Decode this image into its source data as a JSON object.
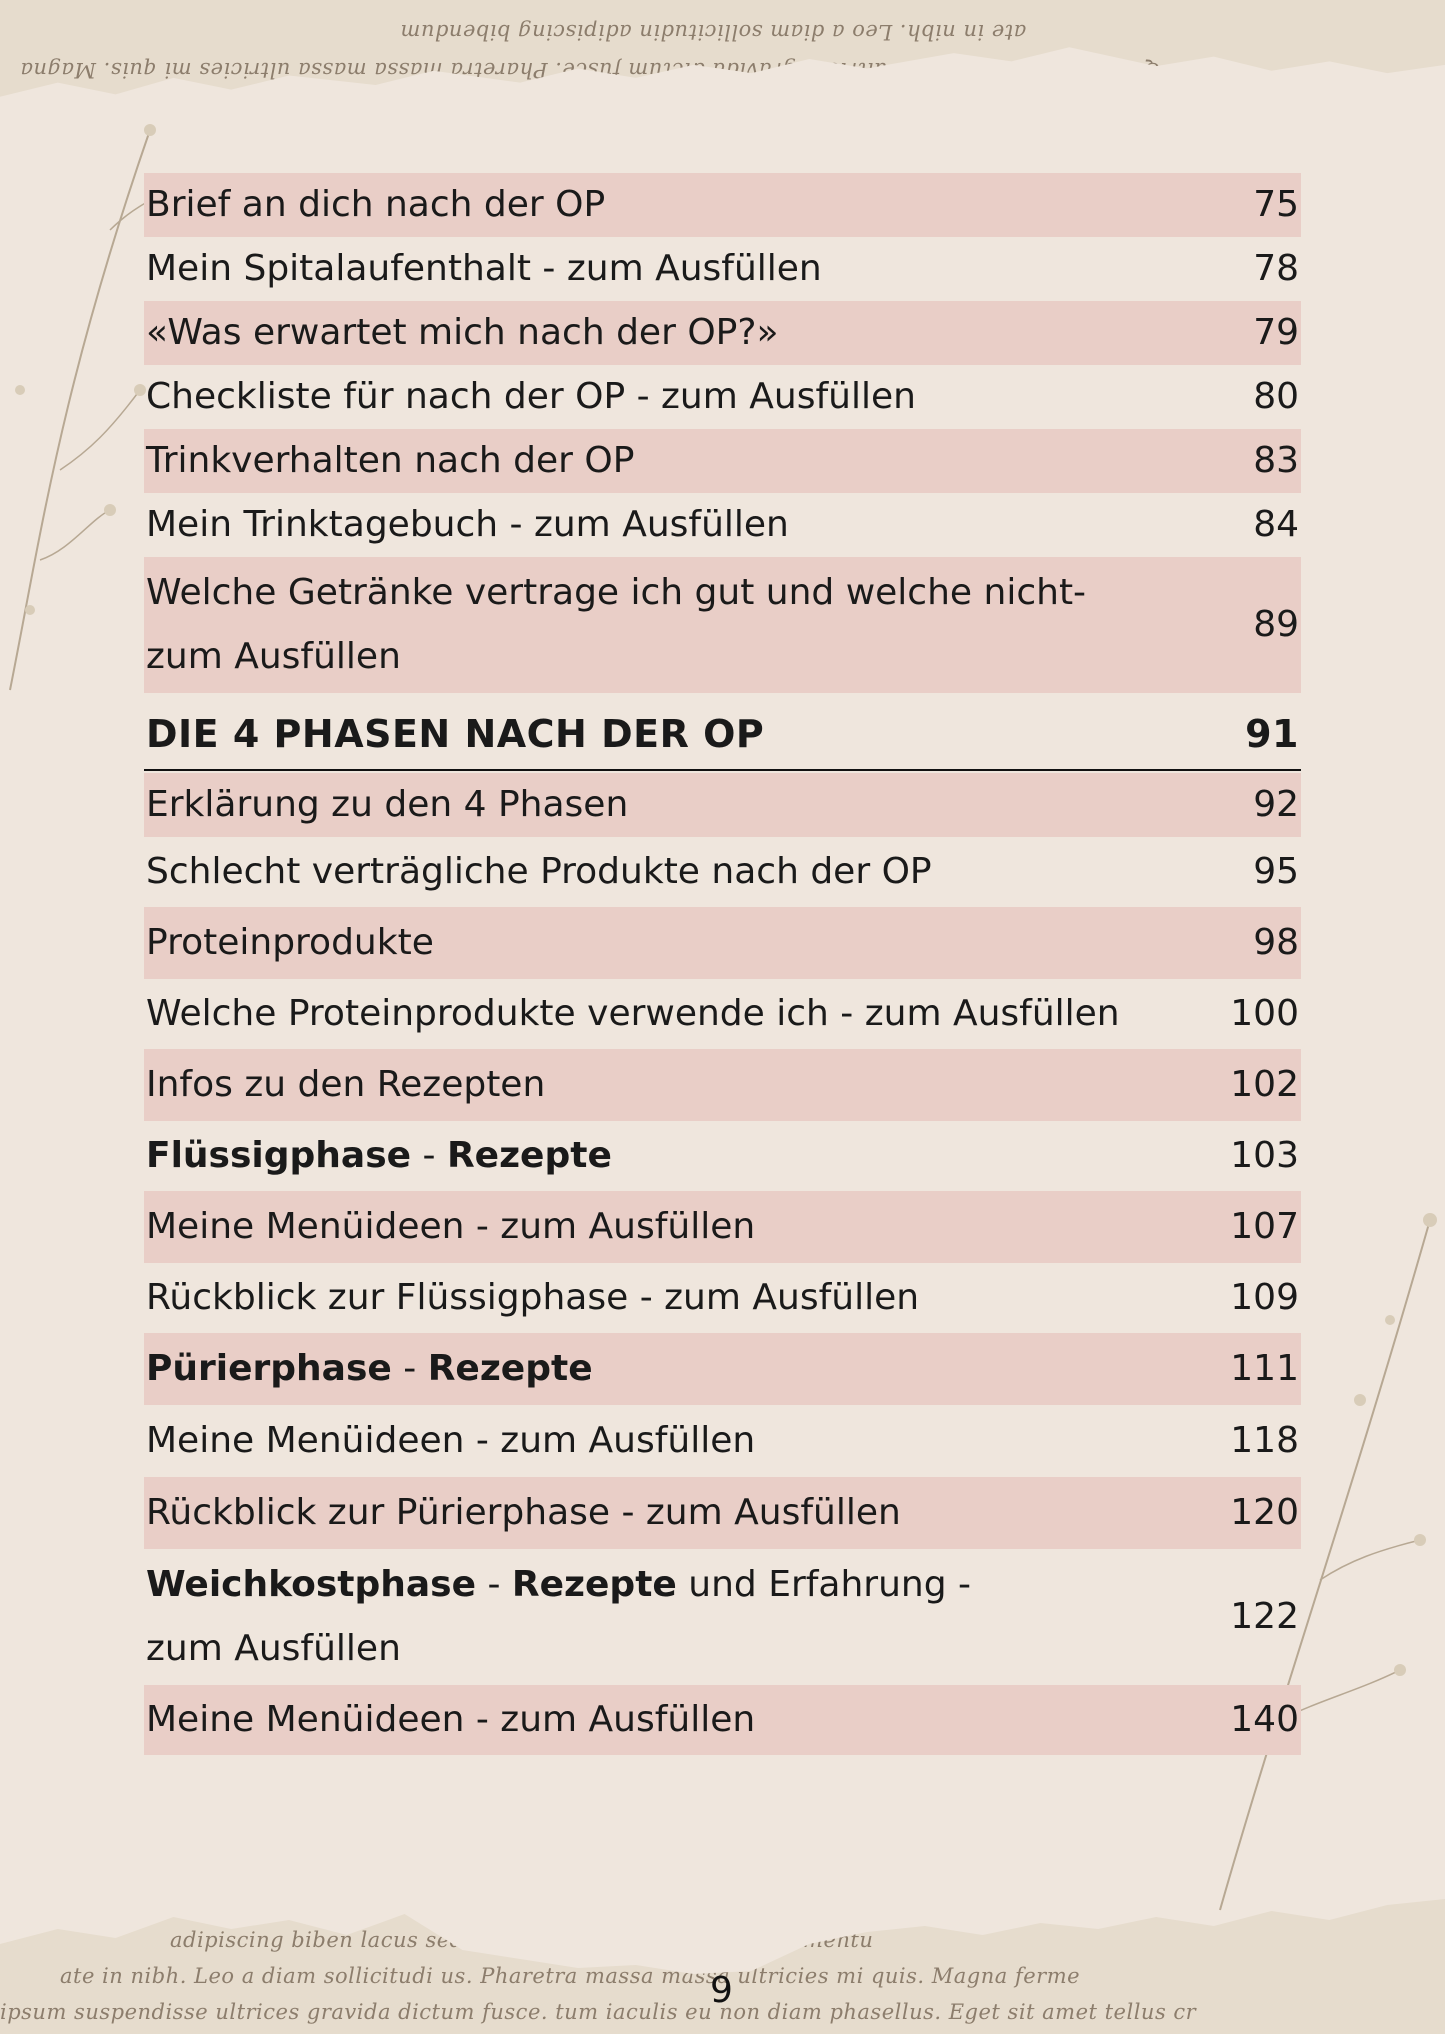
{
  "toc": [
    {
      "label": "Brief an dich nach der OP",
      "page": "75",
      "shade": true
    },
    {
      "label": "Mein Spitalaufenthalt - zum Ausfüllen",
      "page": "78",
      "shade": false
    },
    {
      "label": "«Was erwartet mich nach der OP?»",
      "page": "79",
      "shade": true
    },
    {
      "label": "Checkliste für nach der OP - zum Ausfüllen",
      "page": "80",
      "shade": false
    },
    {
      "label": "Trinkverhalten nach der OP",
      "page": "83",
      "shade": true
    },
    {
      "label": "Mein Trinktagebuch - zum Ausfüllen",
      "page": "84",
      "shade": false
    },
    {
      "label_line1": "Welche Getränke vertrage ich gut und welche nicht-",
      "label_line2": "zum Ausfüllen",
      "page": "89",
      "shade": true
    }
  ],
  "section": {
    "title": "DIE 4 PHASEN NACH DER OP",
    "page": "91"
  },
  "entries": [
    {
      "label": "Erklärung zu den 4 Phasen",
      "page": "92",
      "shade": true
    },
    {
      "label": "Schlecht verträgliche Produkte nach der OP",
      "page": "95",
      "shade": false
    },
    {
      "label": "Proteinprodukte",
      "page": "98",
      "shade": true
    },
    {
      "label": "Welche Proteinprodukte verwende ich - zum Ausfüllen",
      "page": "100",
      "shade": false
    },
    {
      "label": "Infos zu den Rezepten",
      "page": "102",
      "shade": true
    },
    {
      "bold1": "Flüssigphase",
      "sep": " - ",
      "bold2": "Rezepte",
      "page": "103",
      "shade": false
    },
    {
      "label": "Meine Menüideen - zum Ausfüllen",
      "page": "107",
      "shade": true
    },
    {
      "label": "Rückblick zur Flüssigphase - zum Ausfüllen",
      "page": "109",
      "shade": false
    },
    {
      "bold1": "Pürierphase",
      "sep": " - ",
      "bold2": "Rezepte",
      "page": "111",
      "shade": true
    },
    {
      "label": "Meine Menüideen - zum Ausfüllen",
      "page": "118",
      "shade": false
    },
    {
      "label": "Rückblick zur Pürierphase - zum Ausfüllen",
      "page": "120",
      "shade": true
    },
    {
      "bold1": "Weichkostphase",
      "sep": " - ",
      "bold2": "Rezepte",
      "rest": " und Erfahrung -",
      "line2": "zum Ausfüllen",
      "page": "122",
      "shade": false
    },
    {
      "label": "Meine Menüideen - zum Ausfüllen",
      "page": "140",
      "shade": true
    }
  ],
  "page_number": "9",
  "background_text": {
    "top1": "Quis ipsum suspendisse ultrices gravida dictum fusce. Pharetra massa massa ultricies mi quis. Magna",
    "top2": "ate in nibh. Leo a diam sollicitudin  adipiscing bibendum",
    "bottom1": "adipiscing biben              lacus sed turpis tincidunt id aliq   tus elementu",
    "bottom2": "ate in nibh. Leo a diam sollicitudi          us. Pharetra massa massa ultricies mi quis. Magna ferme",
    "bottom3": "ipsum suspendisse ultrices gravida dictum fusce.   tum iaculis eu non diam phasellus. Eget sit amet tellus cr"
  }
}
